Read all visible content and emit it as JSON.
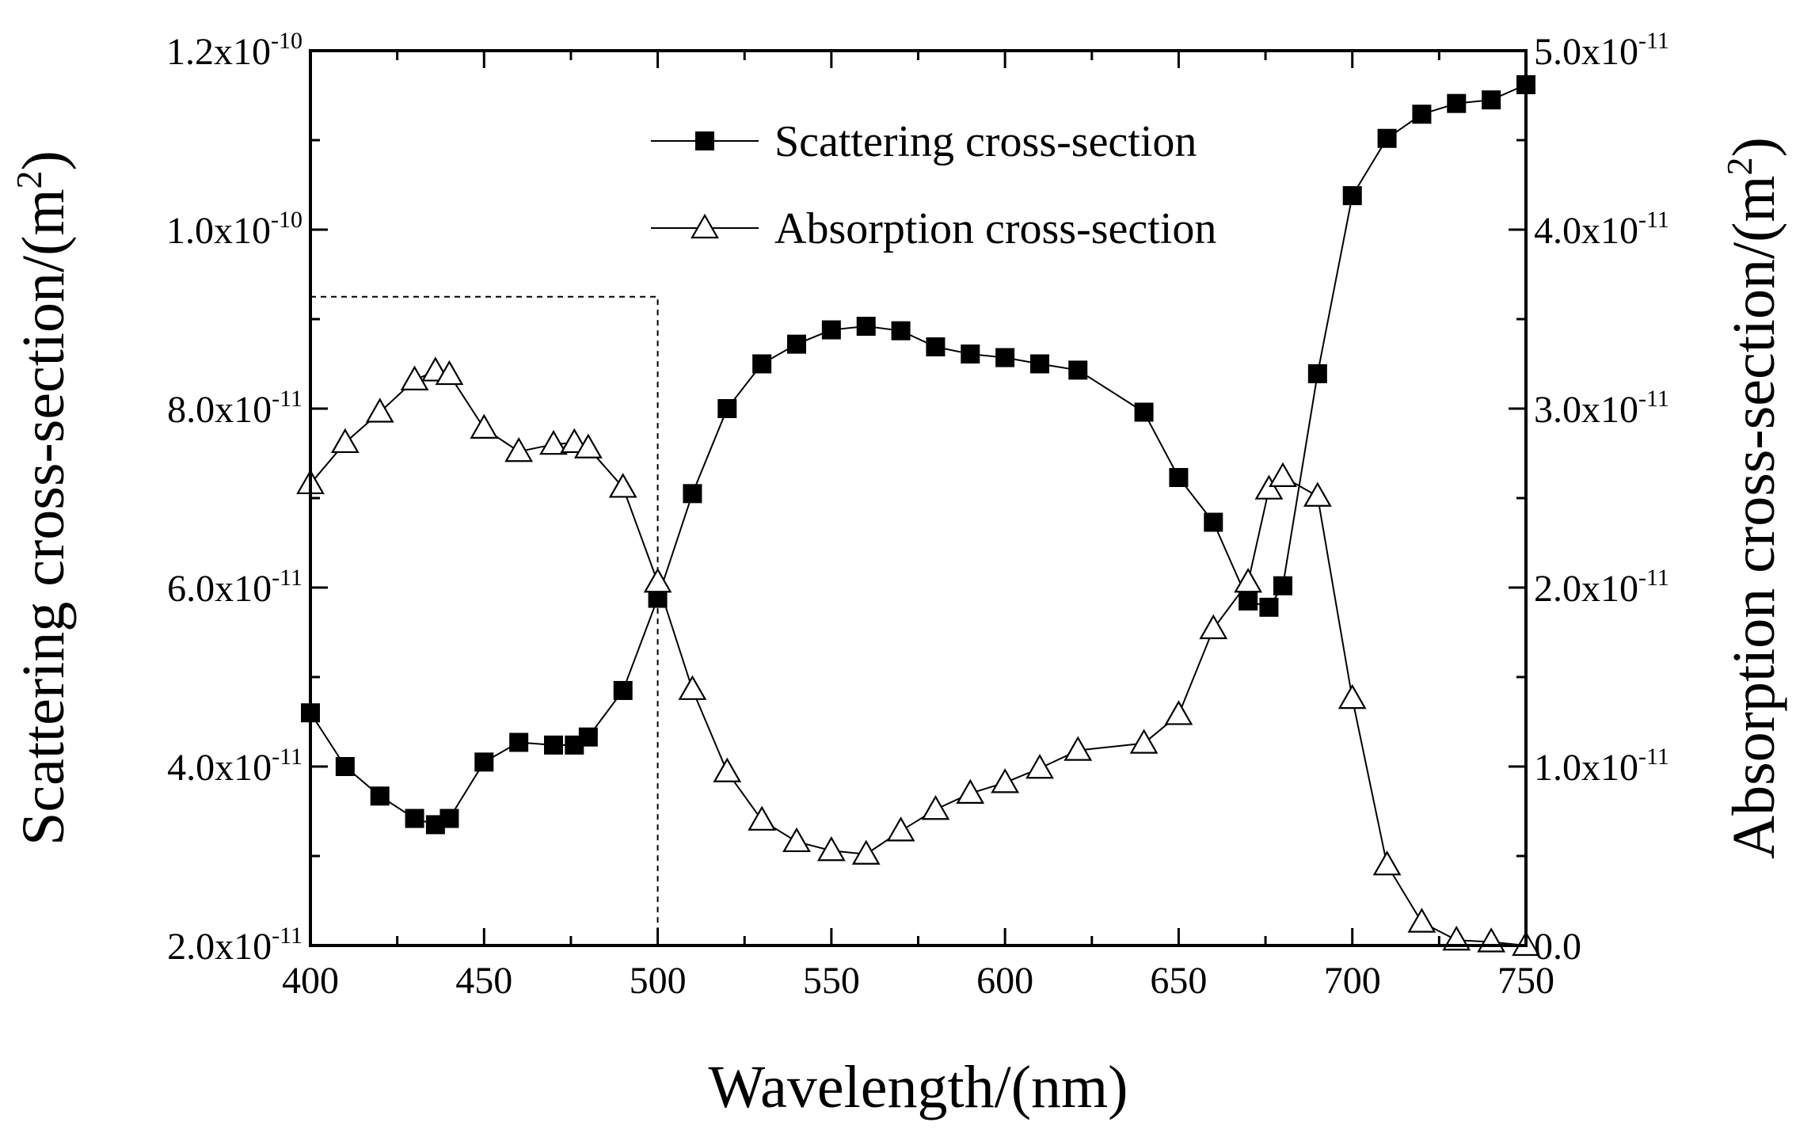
{
  "chart_data": {
    "type": "line",
    "title": "",
    "xlabel": "Wavelength/(nm)",
    "ylabel": "Scattering cross-section/(m2)",
    "ylabel_parts": {
      "text": "Scattering cross-section/(m",
      "sup": "2",
      "close": ")"
    },
    "y2label": "Absorption cross-section/(m2)",
    "y2label_parts": {
      "text": "Absorption cross-section/(m",
      "sup": "2",
      "close": ")"
    },
    "xlim": [
      400,
      750
    ],
    "ylim": [
      2e-11,
      1.2e-10
    ],
    "y2lim": [
      0,
      5e-11
    ],
    "x_ticks": [
      {
        "value": 400,
        "label": "400"
      },
      {
        "value": 450,
        "label": "450"
      },
      {
        "value": 500,
        "label": "500"
      },
      {
        "value": 550,
        "label": "550"
      },
      {
        "value": 600,
        "label": "600"
      },
      {
        "value": 650,
        "label": "650"
      },
      {
        "value": 700,
        "label": "700"
      },
      {
        "value": 750,
        "label": "750"
      }
    ],
    "y_ticks": [
      {
        "value": 2e-11,
        "mantissa": "2.0x10",
        "exp": "-11"
      },
      {
        "value": 4e-11,
        "mantissa": "4.0x10",
        "exp": "-11"
      },
      {
        "value": 6e-11,
        "mantissa": "6.0x10",
        "exp": "-11"
      },
      {
        "value": 8e-11,
        "mantissa": "8.0x10",
        "exp": "-11"
      },
      {
        "value": 1e-10,
        "mantissa": "1.0x10",
        "exp": "-10"
      },
      {
        "value": 1.2e-10,
        "mantissa": "1.2x10",
        "exp": "-10"
      }
    ],
    "y2_ticks": [
      {
        "value": 0,
        "mantissa": "0.0",
        "exp": ""
      },
      {
        "value": 1e-11,
        "mantissa": "1.0x10",
        "exp": "-11"
      },
      {
        "value": 2e-11,
        "mantissa": "2.0x10",
        "exp": "-11"
      },
      {
        "value": 3e-11,
        "mantissa": "3.0x10",
        "exp": "-11"
      },
      {
        "value": 4e-11,
        "mantissa": "4.0x10",
        "exp": "-11"
      },
      {
        "value": 5e-11,
        "mantissa": "5.0x10",
        "exp": "-11"
      }
    ],
    "grid": false,
    "legend_position": "top-center",
    "annotation": {
      "type": "dashed-box",
      "x_from": 400,
      "x_to": 500,
      "y_top": 9.25e-11
    },
    "series": [
      {
        "name": "Scattering cross-section",
        "axis": "left",
        "marker": "filled-square",
        "x": [
          400,
          410,
          420,
          430,
          436,
          440,
          450,
          460,
          470,
          476,
          480,
          490,
          500,
          510,
          520,
          530,
          540,
          550,
          560,
          570,
          580,
          590,
          600,
          610,
          621,
          640,
          650,
          660,
          670,
          676,
          680,
          690,
          700,
          710,
          720,
          730,
          740,
          750
        ],
        "values": [
          4.6e-11,
          4e-11,
          3.67e-11,
          3.42e-11,
          3.35e-11,
          3.42e-11,
          4.05e-11,
          4.27e-11,
          4.24e-11,
          4.24e-11,
          4.33e-11,
          4.85e-11,
          5.88e-11,
          7.05e-11,
          8e-11,
          8.5e-11,
          8.72e-11,
          8.88e-11,
          8.92e-11,
          8.87e-11,
          8.69e-11,
          8.61e-11,
          8.57e-11,
          8.5e-11,
          8.43e-11,
          7.96e-11,
          7.23e-11,
          6.73e-11,
          5.85e-11,
          5.78e-11,
          6.02e-11,
          8.39e-11,
          1.038e-10,
          1.102e-10,
          1.129e-10,
          1.141e-10,
          1.145e-10,
          1.162e-10
        ]
      },
      {
        "name": "Absorption cross-section",
        "axis": "right",
        "marker": "open-triangle",
        "x": [
          400,
          410,
          420,
          430,
          436,
          440,
          450,
          460,
          470,
          476,
          480,
          490,
          500,
          510,
          520,
          530,
          540,
          550,
          560,
          570,
          580,
          590,
          600,
          610,
          621,
          640,
          650,
          660,
          670,
          676,
          680,
          690,
          700,
          710,
          720,
          730,
          740,
          750
        ],
        "values": [
          2.58e-11,
          2.81e-11,
          2.98e-11,
          3.16e-11,
          3.21e-11,
          3.19e-11,
          2.89e-11,
          2.76e-11,
          2.8e-11,
          2.81e-11,
          2.78e-11,
          2.56e-11,
          2.03e-11,
          1.43e-11,
          9.7e-12,
          7e-12,
          5.8e-12,
          5.3e-12,
          5.1e-12,
          6.4e-12,
          7.6e-12,
          8.5e-12,
          9.1e-12,
          9.9e-12,
          1.09e-11,
          1.13e-11,
          1.29e-11,
          1.77e-11,
          2.03e-11,
          2.55e-11,
          2.62e-11,
          2.51e-11,
          1.38e-11,
          4.5e-12,
          1.3e-12,
          3e-13,
          2e-13,
          0.0
        ]
      }
    ]
  }
}
